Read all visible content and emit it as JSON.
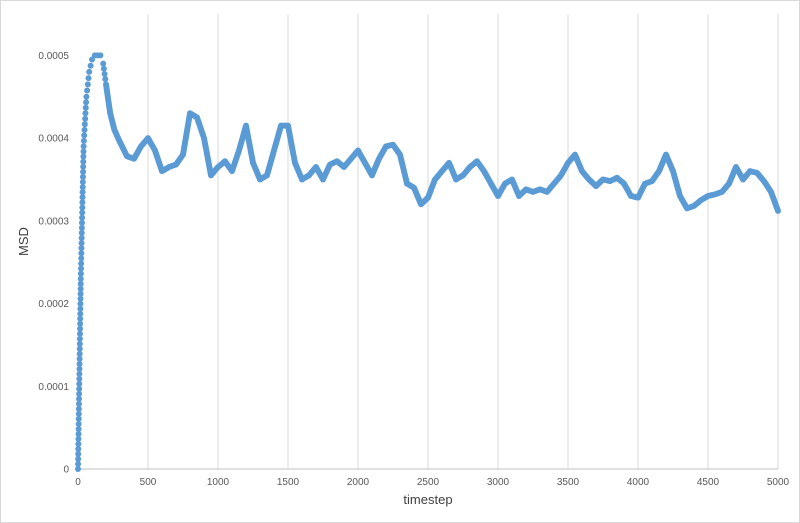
{
  "chart_data": {
    "type": "scatter",
    "title": "",
    "xlabel": "timestep",
    "ylabel": "MSD",
    "xlim": [
      0,
      5000
    ],
    "ylim": [
      0,
      0.00055
    ],
    "x_ticks": [
      "0",
      "500",
      "1000",
      "1500",
      "2000",
      "2500",
      "3000",
      "3500",
      "4000",
      "4500",
      "5000"
    ],
    "y_ticks": [
      "0",
      "0.0001",
      "0.0002",
      "0.0003",
      "0.0004",
      "0.0005"
    ],
    "grid": "vertical",
    "legend": "none",
    "marker_color": "#5b9bd5",
    "series": [
      {
        "x": [
          0,
          20,
          40,
          60,
          80,
          100,
          120,
          140,
          160,
          180,
          200,
          230,
          260,
          300,
          350,
          400,
          450,
          500,
          550,
          600,
          650,
          700,
          750,
          800,
          850,
          900,
          950,
          1000,
          1050,
          1100,
          1150,
          1200,
          1250,
          1300,
          1350,
          1400,
          1450,
          1500,
          1550,
          1600,
          1650,
          1700,
          1750,
          1800,
          1850,
          1900,
          1950,
          2000,
          2050,
          2100,
          2150,
          2200,
          2250,
          2300,
          2350,
          2400,
          2450,
          2500,
          2550,
          2600,
          2650,
          2700,
          2750,
          2800,
          2850,
          2900,
          2950,
          3000,
          3050,
          3100,
          3150,
          3200,
          3250,
          3300,
          3350,
          3400,
          3450,
          3500,
          3550,
          3600,
          3650,
          3700,
          3750,
          3800,
          3850,
          3900,
          3950,
          4000,
          4050,
          4100,
          4150,
          4200,
          4250,
          4300,
          4350,
          4400,
          4450,
          4500,
          4550,
          4600,
          4650,
          4700,
          4750,
          4800,
          4850,
          4900,
          4950,
          5000
        ],
        "y": [
          0.0,
          0.00023,
          0.00039,
          0.00045,
          0.00048,
          0.000495,
          0.0005,
          0.0005,
          0.0005,
          0.00049,
          0.000465,
          0.00043,
          0.00041,
          0.000395,
          0.000378,
          0.000375,
          0.00039,
          0.0004,
          0.000385,
          0.00036,
          0.000365,
          0.000368,
          0.00038,
          0.00043,
          0.000425,
          0.0004,
          0.000355,
          0.000365,
          0.000372,
          0.00036,
          0.000385,
          0.000415,
          0.00037,
          0.00035,
          0.000355,
          0.000385,
          0.000415,
          0.000415,
          0.00037,
          0.00035,
          0.000355,
          0.000365,
          0.00035,
          0.000368,
          0.000372,
          0.000365,
          0.000375,
          0.000385,
          0.00037,
          0.000355,
          0.000375,
          0.00039,
          0.000392,
          0.00038,
          0.000345,
          0.00034,
          0.00032,
          0.000328,
          0.00035,
          0.00036,
          0.00037,
          0.00035,
          0.000355,
          0.000365,
          0.000372,
          0.00036,
          0.000345,
          0.00033,
          0.000345,
          0.00035,
          0.00033,
          0.000338,
          0.000335,
          0.000338,
          0.000335,
          0.000345,
          0.000355,
          0.00037,
          0.00038,
          0.00036,
          0.00035,
          0.000342,
          0.00035,
          0.000348,
          0.000352,
          0.000345,
          0.00033,
          0.000328,
          0.000345,
          0.000348,
          0.00036,
          0.00038,
          0.00036,
          0.00033,
          0.000315,
          0.000318,
          0.000325,
          0.00033,
          0.000332,
          0.000335,
          0.000345,
          0.000365,
          0.00035,
          0.00036,
          0.000358,
          0.000348,
          0.000335,
          0.000312
        ]
      }
    ]
  }
}
